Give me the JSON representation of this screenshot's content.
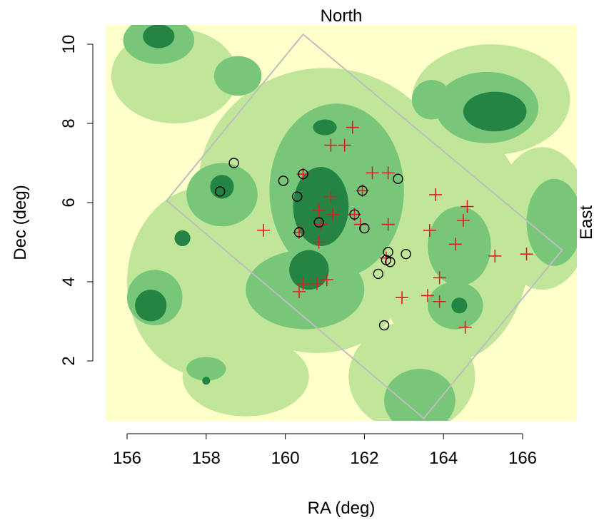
{
  "chart_data": {
    "type": "scatter",
    "title": "",
    "xlabel": "RA (deg)",
    "ylabel": "Dec (deg)",
    "top_label": "North",
    "right_label": "East",
    "xlim": [
      155.4,
      167.3
    ],
    "ylim": [
      0.4,
      10.5
    ],
    "xticks": [
      156,
      158,
      160,
      162,
      164,
      166
    ],
    "yticks": [
      2,
      4,
      6,
      8,
      10
    ],
    "grid": false,
    "legend": "none",
    "colors": {
      "level0": "#FFFFCC",
      "level1": "#C2E699",
      "level2": "#78C679",
      "level3": "#238443",
      "footprint": "#BEBEBE",
      "cross": "#DF1C24",
      "circle": "#000000"
    },
    "density_blobs": [
      {
        "x": 161.3,
        "y": 6.3,
        "rx": 1.7,
        "ry": 2.2,
        "level": 2
      },
      {
        "x": 160.9,
        "y": 5.9,
        "rx": 0.7,
        "ry": 1.0,
        "level": 3
      },
      {
        "x": 161.0,
        "y": 7.9,
        "rx": 0.3,
        "ry": 0.2,
        "level": 3
      },
      {
        "x": 158.4,
        "y": 6.2,
        "rx": 0.9,
        "ry": 0.8,
        "level": 2
      },
      {
        "x": 158.4,
        "y": 6.4,
        "rx": 0.3,
        "ry": 0.3,
        "level": 3
      },
      {
        "x": 160.5,
        "y": 3.8,
        "rx": 1.5,
        "ry": 1.0,
        "level": 2
      },
      {
        "x": 160.6,
        "y": 4.3,
        "rx": 0.5,
        "ry": 0.5,
        "level": 3
      },
      {
        "x": 156.7,
        "y": 3.6,
        "rx": 0.7,
        "ry": 0.7,
        "level": 2
      },
      {
        "x": 156.6,
        "y": 3.4,
        "rx": 0.4,
        "ry": 0.4,
        "level": 3
      },
      {
        "x": 165.1,
        "y": 8.4,
        "rx": 1.3,
        "ry": 0.9,
        "level": 2
      },
      {
        "x": 165.3,
        "y": 8.3,
        "rx": 0.8,
        "ry": 0.5,
        "level": 3
      },
      {
        "x": 156.8,
        "y": 10.1,
        "rx": 0.9,
        "ry": 0.6,
        "level": 2
      },
      {
        "x": 156.8,
        "y": 10.2,
        "rx": 0.4,
        "ry": 0.3,
        "level": 3
      },
      {
        "x": 164.4,
        "y": 4.9,
        "rx": 0.8,
        "ry": 1.0,
        "level": 2
      },
      {
        "x": 164.3,
        "y": 3.4,
        "rx": 0.7,
        "ry": 0.6,
        "level": 2
      },
      {
        "x": 164.4,
        "y": 3.4,
        "rx": 0.2,
        "ry": 0.2,
        "level": 3
      },
      {
        "x": 166.8,
        "y": 5.5,
        "rx": 0.7,
        "ry": 1.1,
        "level": 2
      },
      {
        "x": 163.4,
        "y": 1.0,
        "rx": 0.9,
        "ry": 0.8,
        "level": 2
      },
      {
        "x": 158.0,
        "y": 1.8,
        "rx": 0.5,
        "ry": 0.3,
        "level": 2
      },
      {
        "x": 158.0,
        "y": 1.5,
        "rx": 0.1,
        "ry": 0.1,
        "level": 3
      },
      {
        "x": 157.4,
        "y": 5.1,
        "rx": 0.2,
        "ry": 0.2,
        "level": 3
      },
      {
        "x": 158.8,
        "y": 9.2,
        "rx": 0.6,
        "ry": 0.5,
        "level": 2
      },
      {
        "x": 163.7,
        "y": 8.6,
        "rx": 0.5,
        "ry": 0.5,
        "level": 2
      }
    ],
    "footprint": [
      {
        "x": 160.45,
        "y": 10.25
      },
      {
        "x": 167.0,
        "y": 4.8
      },
      {
        "x": 163.5,
        "y": 0.55
      },
      {
        "x": 157.0,
        "y": 6.05
      }
    ],
    "series": [
      {
        "marker": "cross",
        "points": [
          [
            161.7,
            7.9
          ],
          [
            161.5,
            7.45
          ],
          [
            161.15,
            7.45
          ],
          [
            162.6,
            6.75
          ],
          [
            162.2,
            6.75
          ],
          [
            160.45,
            6.72
          ],
          [
            161.95,
            6.3
          ],
          [
            161.15,
            6.15
          ],
          [
            163.8,
            6.2
          ],
          [
            160.85,
            5.8
          ],
          [
            161.2,
            5.7
          ],
          [
            161.75,
            5.7
          ],
          [
            160.9,
            5.45
          ],
          [
            161.9,
            5.45
          ],
          [
            162.6,
            5.45
          ],
          [
            159.45,
            5.3
          ],
          [
            160.35,
            5.25
          ],
          [
            163.65,
            5.3
          ],
          [
            160.85,
            5.0
          ],
          [
            164.6,
            5.9
          ],
          [
            164.5,
            5.55
          ],
          [
            164.3,
            4.95
          ],
          [
            165.3,
            4.65
          ],
          [
            166.1,
            4.7
          ],
          [
            162.55,
            4.6
          ],
          [
            163.9,
            4.1
          ],
          [
            161.05,
            4.05
          ],
          [
            160.8,
            3.95
          ],
          [
            160.45,
            3.95
          ],
          [
            160.35,
            3.75
          ],
          [
            162.95,
            3.6
          ],
          [
            163.6,
            3.65
          ],
          [
            163.9,
            3.5
          ],
          [
            164.55,
            2.85
          ]
        ]
      },
      {
        "marker": "circle",
        "points": [
          [
            158.7,
            7.0
          ],
          [
            159.95,
            6.55
          ],
          [
            160.45,
            6.72
          ],
          [
            158.35,
            6.28
          ],
          [
            160.3,
            6.15
          ],
          [
            161.95,
            6.3
          ],
          [
            162.85,
            6.6
          ],
          [
            161.75,
            5.7
          ],
          [
            160.85,
            5.5
          ],
          [
            162.0,
            5.35
          ],
          [
            160.35,
            5.25
          ],
          [
            162.6,
            4.75
          ],
          [
            163.05,
            4.7
          ],
          [
            162.55,
            4.55
          ],
          [
            162.65,
            4.5
          ],
          [
            162.35,
            4.2
          ],
          [
            162.5,
            2.9
          ]
        ]
      }
    ]
  }
}
